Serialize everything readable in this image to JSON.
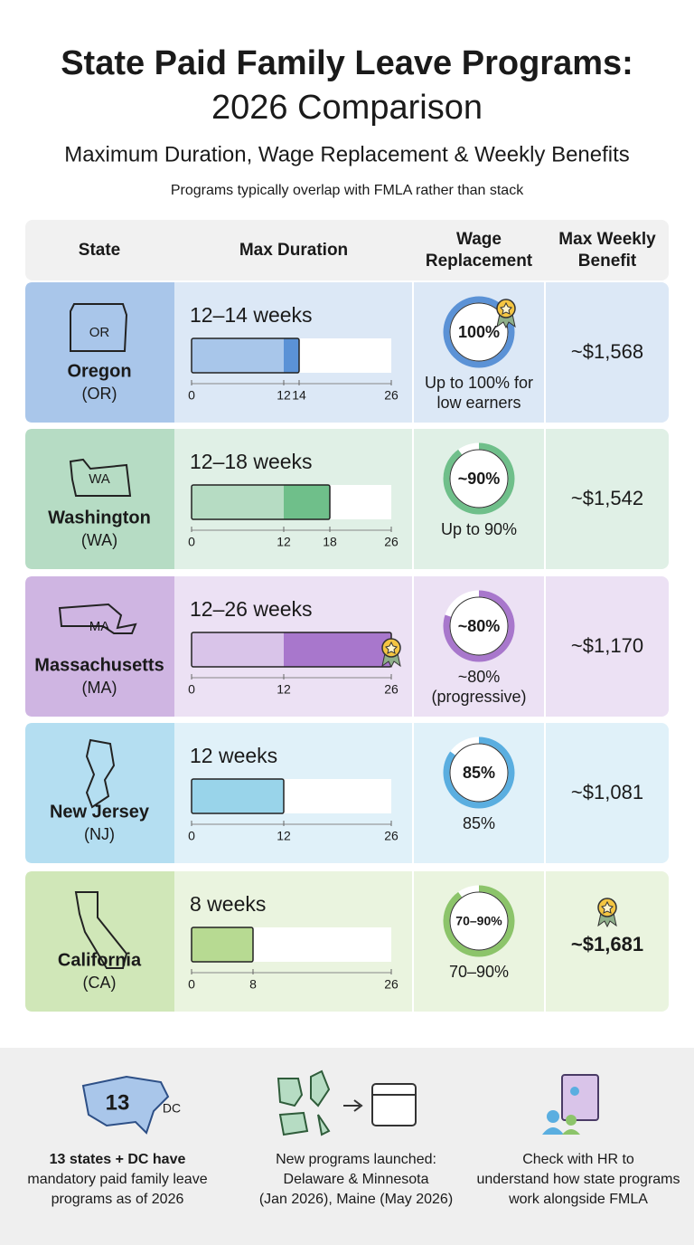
{
  "header": {
    "title": [
      "State Paid Family Leave Programs:",
      "2026 Comparison"
    ],
    "subtitle": "Maximum Duration, Wage Replacement & Weekly Benefits",
    "note": "Programs typically overlap with FMLA rather than stack"
  },
  "table": {
    "columns": [
      [
        "State"
      ],
      [
        "Max Duration"
      ],
      [
        "Wage",
        "Replacement"
      ],
      [
        "Max Weekly",
        "Benefit"
      ]
    ],
    "xlim": [
      0,
      26
    ],
    "rows": [
      {
        "abbr": "OR",
        "state": "Oregon",
        "code": "(OR)",
        "duration_label": "12–14 weeks",
        "weeks": [
          12,
          14
        ],
        "ticks": [
          0,
          12,
          14,
          26
        ],
        "wage": 100,
        "wage_label": "100%",
        "wage_note": [
          "Up to 100% for",
          "low earners"
        ],
        "benefit": "~$1,568",
        "colors": {
          "state": "#a9c6ea",
          "row": "#dce8f6",
          "bar": [
            "#a8c6ea",
            "#5b92d6"
          ],
          "ring": "#5b92d6"
        },
        "badge": "wage"
      },
      {
        "abbr": "WA",
        "state": "Washington",
        "code": "(WA)",
        "duration_label": "12–18 weeks",
        "weeks": [
          12,
          18
        ],
        "ticks": [
          0,
          12,
          18,
          26
        ],
        "wage": 90,
        "wage_label": "~90%",
        "wage_note": [
          "Up to 90%"
        ],
        "benefit": "~$1,542",
        "colors": {
          "state": "#b6dcc4",
          "row": "#e0f0e6",
          "bar": [
            "#b6dcc3",
            "#6fbf8a"
          ],
          "ring": "#6fbf8a"
        }
      },
      {
        "abbr": "MA",
        "state": "Massachusetts",
        "code": "(MA)",
        "duration_label": "12–26 weeks",
        "weeks": [
          12,
          26
        ],
        "ticks": [
          0,
          12,
          26
        ],
        "wage": 80,
        "wage_label": "~80%",
        "wage_note": [
          "~80%",
          "(progressive)"
        ],
        "benefit": "~$1,170",
        "colors": {
          "state": "#cfb5e2",
          "row": "#ece1f4",
          "bar": [
            "#d9c4e9",
            "#a877cc"
          ],
          "ring": "#a877cc"
        },
        "badge": "bar"
      },
      {
        "state": "New Jersey",
        "code": "(NJ)",
        "duration_label": "12 weeks",
        "weeks": [
          12
        ],
        "ticks": [
          0,
          12,
          26
        ],
        "wage": 85,
        "wage_label": "85%",
        "wage_note": [
          "85%"
        ],
        "benefit": "~$1,081",
        "colors": {
          "state": "#b4def1",
          "row": "#e0f1f9",
          "bar": [
            "#99d4ea"
          ],
          "ring": "#5aaee0"
        }
      },
      {
        "state": "California",
        "code": "(CA)",
        "duration_label": "8 weeks",
        "weeks": [
          8
        ],
        "ticks": [
          0,
          8,
          26
        ],
        "wage": 90,
        "wage_label": "70–90%",
        "wage_note": [
          "70–90%"
        ],
        "benefit": "~$1,681",
        "colors": {
          "state": "#d0e7b8",
          "row": "#eaf4df",
          "bar": [
            "#b7da92"
          ],
          "ring": "#8cc46a"
        },
        "badge": "benefit"
      }
    ]
  },
  "footer": {
    "items": [
      {
        "map_number": "13",
        "map_label": "DC",
        "text": [
          "13 states + DC have",
          "mandatory paid family leave",
          "programs as of 2026"
        ]
      },
      {
        "text": [
          "New programs launched:",
          "Delaware & Minnesota",
          "(Jan 2026), Maine (May 2026)"
        ]
      },
      {
        "text": [
          "Check with HR to",
          "understand how state programs",
          "work alongside FMLA"
        ]
      }
    ]
  }
}
